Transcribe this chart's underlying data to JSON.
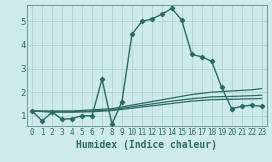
{
  "xlabel": "Humidex (Indice chaleur)",
  "background_color": "#ceeaea",
  "grid_color": "#b0d4d4",
  "line_color": "#2a6b65",
  "xlim": [
    -0.5,
    23.5
  ],
  "ylim": [
    0.55,
    5.7
  ],
  "xticks": [
    0,
    1,
    2,
    3,
    4,
    5,
    6,
    7,
    8,
    9,
    10,
    11,
    12,
    13,
    14,
    15,
    16,
    17,
    18,
    19,
    20,
    21,
    22,
    23
  ],
  "yticks": [
    1,
    2,
    3,
    4,
    5
  ],
  "main_series": {
    "x": [
      0,
      1,
      2,
      3,
      4,
      5,
      6,
      7,
      8,
      9,
      10,
      11,
      12,
      13,
      14,
      15,
      16,
      17,
      18,
      19,
      20,
      21,
      22,
      23
    ],
    "y": [
      1.2,
      0.78,
      1.15,
      0.85,
      0.88,
      1.0,
      1.0,
      2.55,
      0.65,
      1.6,
      4.45,
      5.0,
      5.1,
      5.3,
      5.55,
      5.05,
      3.6,
      3.5,
      3.3,
      2.2,
      1.3,
      1.4,
      1.45,
      1.4
    ]
  },
  "flat_series": [
    {
      "x": [
        0,
        2,
        4,
        6,
        8,
        10,
        12,
        14,
        16,
        18,
        20,
        22,
        23
      ],
      "y": [
        1.2,
        1.2,
        1.2,
        1.25,
        1.3,
        1.45,
        1.6,
        1.75,
        1.9,
        2.0,
        2.05,
        2.1,
        2.15
      ]
    },
    {
      "x": [
        0,
        2,
        4,
        6,
        8,
        10,
        12,
        14,
        16,
        18,
        20,
        22,
        23
      ],
      "y": [
        1.2,
        1.18,
        1.18,
        1.2,
        1.25,
        1.38,
        1.5,
        1.62,
        1.72,
        1.8,
        1.82,
        1.85,
        1.87
      ]
    },
    {
      "x": [
        0,
        2,
        4,
        6,
        8,
        10,
        12,
        14,
        16,
        18,
        20,
        22,
        23
      ],
      "y": [
        1.2,
        1.15,
        1.15,
        1.17,
        1.22,
        1.32,
        1.42,
        1.52,
        1.62,
        1.68,
        1.7,
        1.72,
        1.73
      ]
    }
  ]
}
